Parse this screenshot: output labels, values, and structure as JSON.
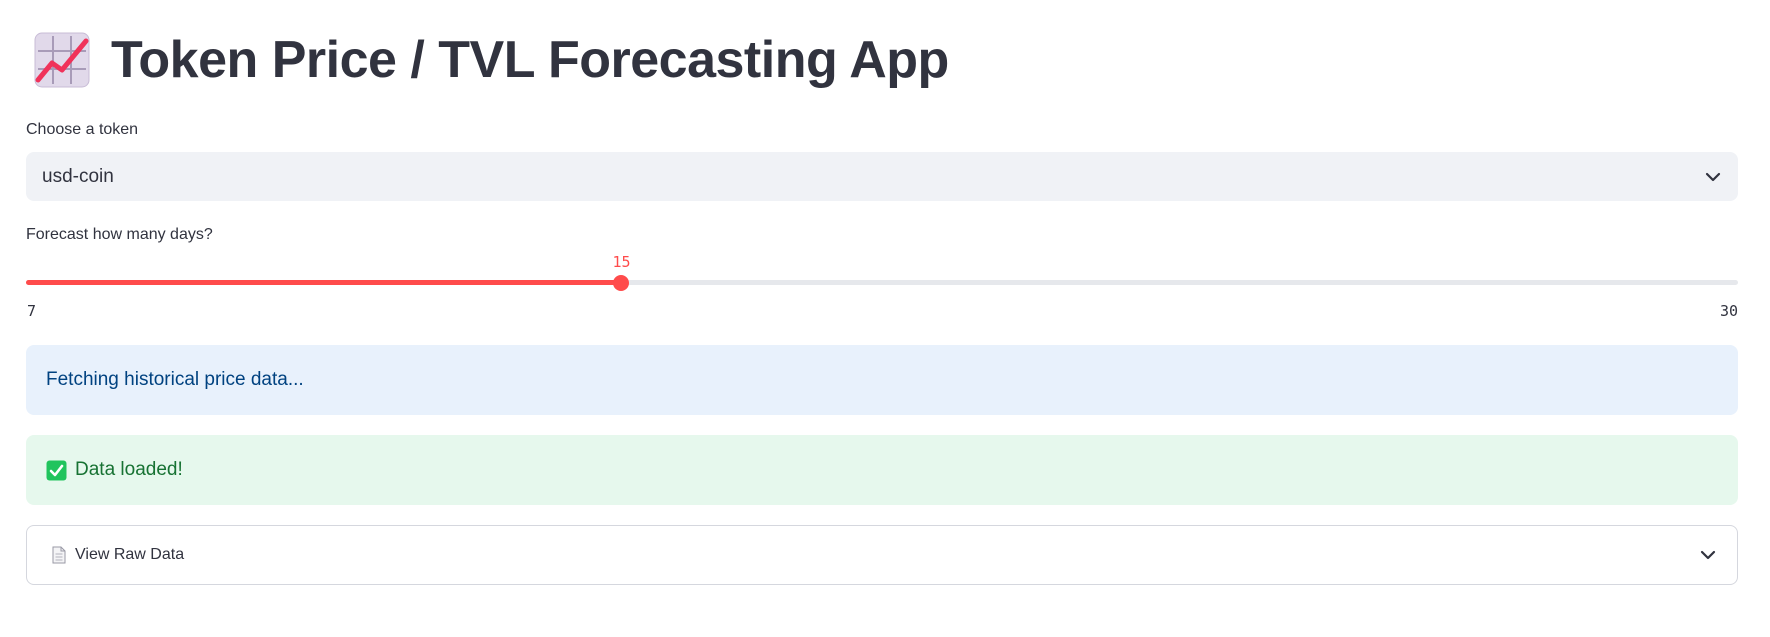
{
  "header": {
    "icon": "chart-increasing-icon",
    "title": "Token Price / TVL Forecasting App"
  },
  "token_select": {
    "label": "Choose a token",
    "value": "usd-coin",
    "icon": "chevron-down-icon"
  },
  "forecast_slider": {
    "label": "Forecast how many days?",
    "value": 15,
    "min": 7,
    "max": 30,
    "color": "#ff4b4b"
  },
  "alerts": {
    "info": "Fetching historical price data...",
    "success": "Data loaded!",
    "success_icon": "check-box-icon"
  },
  "raw_data_expander": {
    "icon": "document-icon",
    "label": "View Raw Data"
  }
}
